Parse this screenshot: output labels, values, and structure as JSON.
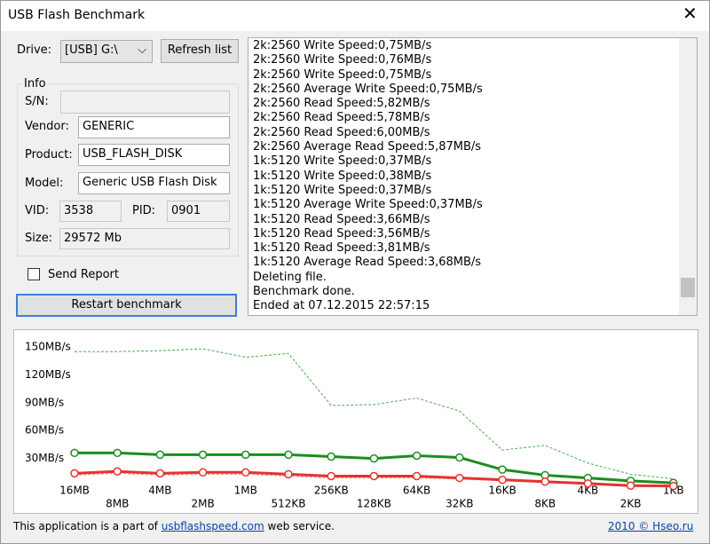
{
  "window": {
    "title": "USB Flash Benchmark"
  },
  "drive": {
    "label": "Drive:",
    "value": "[USB] G:\\",
    "button": "Refresh list"
  },
  "info": {
    "title": "Info",
    "fields": {
      "sn_label": "S/N:",
      "vendor_label": "Vendor:",
      "vendor": "GENERIC",
      "product_label": "Product:",
      "product": "USB_FLASH_DISK",
      "model_label": "Model:",
      "model": "Generic USB Flash Disk",
      "vid_label": "VID:",
      "vid": "3538",
      "pid_label": "PID:",
      "pid": "0901",
      "size_label": "Size:",
      "size": "29572 Mb"
    }
  },
  "send_report": "Send Report",
  "restart_button": "Restart benchmark",
  "log": [
    "2k:2560 Write Speed:0,75MB/s",
    "2k:2560 Write Speed:0,76MB/s",
    "2k:2560 Write Speed:0,75MB/s",
    "2k:2560 Average Write Speed:0,75MB/s",
    "2k:2560 Read Speed:5,82MB/s",
    "2k:2560 Read Speed:5,78MB/s",
    "2k:2560 Read Speed:6,00MB/s",
    "2k:2560 Average Read Speed:5,87MB/s",
    "1k:5120 Write Speed:0,37MB/s",
    "1k:5120 Write Speed:0,38MB/s",
    "1k:5120 Write Speed:0,37MB/s",
    "1k:5120 Average Write Speed:0,37MB/s",
    "1k:5120 Read Speed:3,66MB/s",
    "1k:5120 Read Speed:3,56MB/s",
    "1k:5120 Read Speed:3,81MB/s",
    "1k:5120 Average Read Speed:3,68MB/s",
    "Deleting file.",
    "Benchmark done.",
    "Ended at 07.12.2015 22:57:15"
  ],
  "chart_data": {
    "type": "line",
    "categories": [
      "16MB",
      "8MB",
      "4MB",
      "2MB",
      "1MB",
      "512KB",
      "256KB",
      "128KB",
      "64KB",
      "32KB",
      "16KB",
      "8KB",
      "4KB",
      "2KB",
      "1KB"
    ],
    "ylim": [
      0,
      158
    ],
    "yticks": [
      {
        "value": 30,
        "label": "30MB/s"
      },
      {
        "value": 60,
        "label": "60MB/s"
      },
      {
        "value": 90,
        "label": "90MB/s"
      },
      {
        "value": 120,
        "label": "120MB/s"
      },
      {
        "value": 150,
        "label": "150MB/s"
      }
    ],
    "grid": false,
    "series": [
      {
        "color": "#4cae4c",
        "dashed": true,
        "markers": false,
        "values": [
          145,
          145,
          146,
          148,
          139,
          143,
          87,
          88,
          95,
          81,
          39,
          44,
          25,
          13,
          8
        ]
      },
      {
        "color": "#e78a8a",
        "dashed": true,
        "markers": false,
        "values": [
          12,
          14,
          12,
          13,
          13,
          11,
          9,
          9,
          9,
          8,
          6,
          4,
          2,
          1,
          0.5
        ]
      },
      {
        "color": "#1e8c1e",
        "dashed": false,
        "markers": true,
        "values": [
          36,
          36,
          34,
          34,
          34,
          34,
          32,
          30,
          33,
          31,
          18,
          12,
          9,
          5.87,
          3.68
        ]
      },
      {
        "color": "#e83030",
        "dashed": false,
        "markers": true,
        "values": [
          14,
          16,
          14,
          15,
          15,
          13,
          11,
          11,
          11,
          9,
          7,
          5,
          3,
          0.75,
          0.37
        ]
      }
    ]
  },
  "footer": {
    "text_before": "This application is a part of",
    "link": "usbflashspeed.com",
    "text_after": "web service.",
    "copyright": "2010 © Hseo.ru"
  }
}
